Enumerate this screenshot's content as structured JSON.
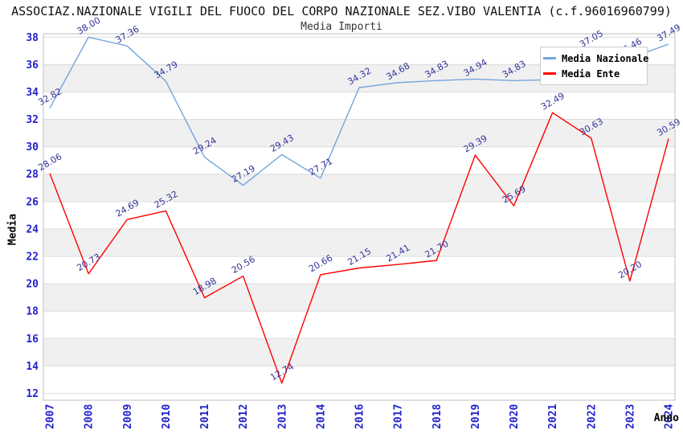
{
  "header": {
    "title": "ASSOCIAZ.NAZIONALE VIGILI DEL FUOCO DEL CORPO NAZIONALE SEZ.VIBO VALENTIA (c.f.96016960799)",
    "subtitle": "Media Importi"
  },
  "axes": {
    "x_title": "Anno",
    "y_title": "Media",
    "y_ticks": [
      12,
      14,
      16,
      18,
      20,
      22,
      24,
      26,
      28,
      30,
      32,
      34,
      36,
      38
    ]
  },
  "legend": {
    "items": [
      {
        "label": "Media Nazionale",
        "color": "#74a5dc"
      },
      {
        "label": "Media Ente",
        "color": "#ff0000"
      }
    ]
  },
  "colors": {
    "national_line": "#74a5dc",
    "ente_line": "#ff0000",
    "tick_label": "#2222cc",
    "data_label": "#333399",
    "gridline": "#dcdcdc",
    "band_fill": "#f0f0f0",
    "plot_border": "#c0c0c0",
    "title_text": "#111111"
  },
  "chart_data": {
    "type": "line",
    "title": "Media Importi",
    "xlabel": "Anno",
    "ylabel": "Media",
    "ylim": [
      11.5,
      38.25
    ],
    "y_tick_step": 2,
    "grid": true,
    "legend_position": "top-right-inside",
    "categories": [
      "2007",
      "2008",
      "2009",
      "2010",
      "2011",
      "2012",
      "2013",
      "2014",
      "2016",
      "2017",
      "2018",
      "2019",
      "2020",
      "2021",
      "2022",
      "2023",
      "2024"
    ],
    "series": [
      {
        "name": "Media Nazionale",
        "color": "#74a5dc",
        "values": [
          32.82,
          38.0,
          37.36,
          34.79,
          29.24,
          27.19,
          29.43,
          27.71,
          34.32,
          34.68,
          34.83,
          34.94,
          34.83,
          34.9,
          37.05,
          36.46,
          37.49
        ],
        "labels": [
          "32.82",
          "38.00",
          "37.36",
          "34.79",
          "29.24",
          "27.19",
          "29.43",
          "27.71",
          "34.32",
          "34.68",
          "34.83",
          "34.94",
          "34.83",
          "",
          "37.05",
          "36.46",
          "37.49"
        ]
      },
      {
        "name": "Media Ente",
        "color": "#ff0000",
        "values": [
          28.06,
          20.73,
          24.69,
          25.32,
          18.98,
          20.56,
          12.74,
          20.66,
          21.15,
          21.41,
          21.7,
          29.39,
          25.69,
          32.49,
          30.63,
          20.2,
          30.59
        ],
        "labels": [
          "28.06",
          "20.73",
          "24.69",
          "25.32",
          "18.98",
          "20.56",
          "12.74",
          "20.66",
          "21.15",
          "21.41",
          "21.70",
          "29.39",
          "25.69",
          "32.49",
          "30.63",
          "20.20",
          "30.59"
        ]
      }
    ]
  }
}
